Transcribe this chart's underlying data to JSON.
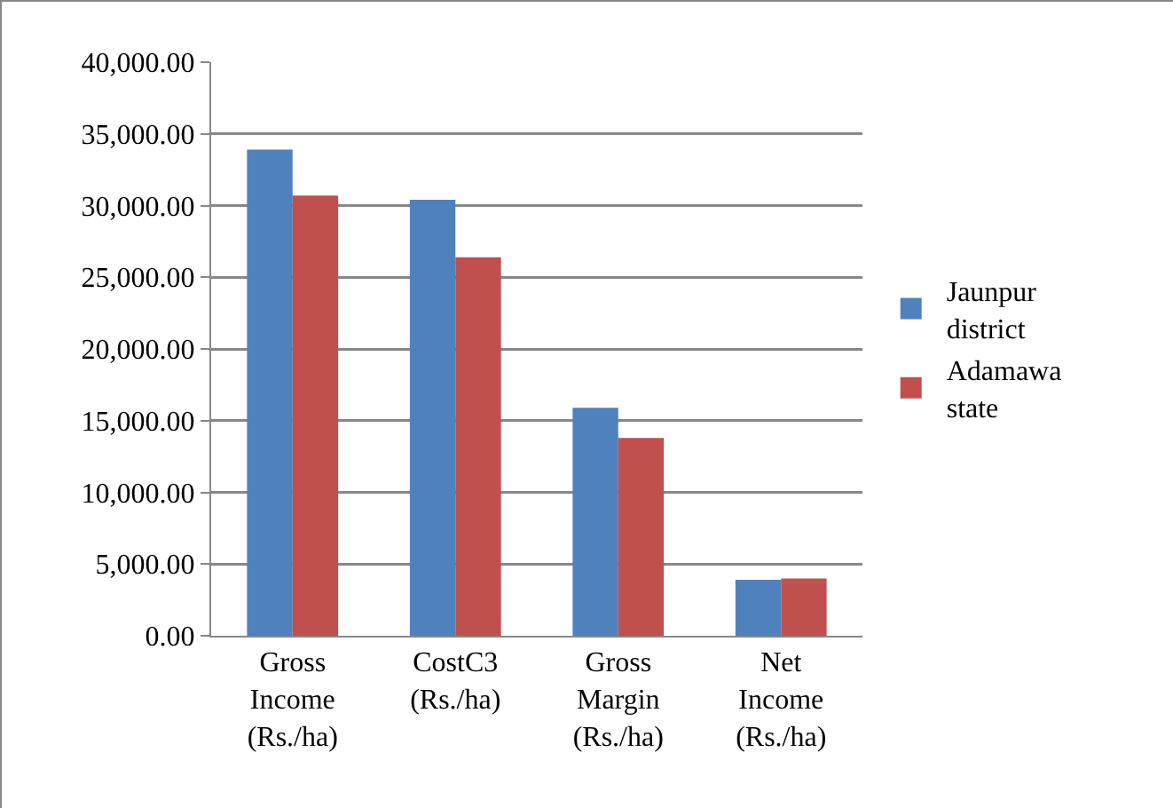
{
  "chart_data": {
    "type": "bar",
    "categories": [
      "Gross Income (Rs./ha)",
      "CostC3 (Rs./ha)",
      "Gross Margin (Rs./ha)",
      "Net Income (Rs./ha)"
    ],
    "series": [
      {
        "name": "Jaunpur district",
        "color": "#4f81bd",
        "values": [
          33900,
          30400,
          15900,
          3900
        ]
      },
      {
        "name": "Adamawa state",
        "color": "#c0504d",
        "values": [
          30700,
          26400,
          13800,
          4000
        ]
      }
    ],
    "ylim": [
      0,
      40000
    ],
    "yticks": [
      {
        "value": 0,
        "label": "0.00"
      },
      {
        "value": 5000,
        "label": "5,000.00"
      },
      {
        "value": 10000,
        "label": "10,000.00"
      },
      {
        "value": 15000,
        "label": "15,000.00"
      },
      {
        "value": 20000,
        "label": "20,000.00"
      },
      {
        "value": 25000,
        "label": "25,000.00"
      },
      {
        "value": 30000,
        "label": "30,000.00"
      },
      {
        "value": 35000,
        "label": "35,000.00"
      },
      {
        "value": 40000,
        "label": "40,000.00"
      }
    ],
    "grid": "y",
    "legend": "right"
  }
}
